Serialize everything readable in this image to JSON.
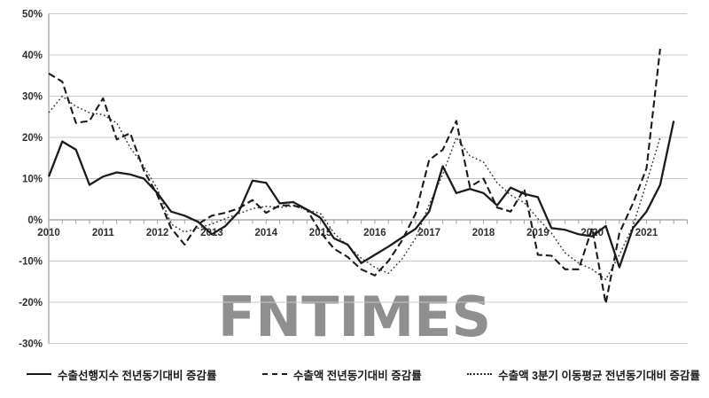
{
  "watermark": {
    "text": "FNTIMES",
    "color": "#8f8f8f"
  },
  "colors": {
    "background": "#ffffff",
    "line": "#1b1b1b",
    "dotted_line": "#2e2e2e",
    "grid": "#c8c8c8",
    "axis": "#9e9e9e",
    "tick_label": "#2f2f2f",
    "watermark": "#8f8f8f"
  },
  "legend": {
    "items": [
      {
        "label": "수출선행지수 전년동기대비 증감률",
        "line_style": "solid"
      },
      {
        "label": "수출액 전년동기대비 증감률",
        "line_style": "dashed"
      },
      {
        "label": "수출액 3분기 이동평균 전년동기대비 증감률",
        "line_style": "dotted"
      }
    ]
  },
  "chart_data": {
    "type": "line",
    "title": "",
    "xlabel": "",
    "ylabel": "",
    "grid": true,
    "legend_position": "bottom",
    "ylim": [
      -30,
      50
    ],
    "y_ticks": [
      {
        "value": 50,
        "label": "50%"
      },
      {
        "value": 40,
        "label": "40%"
      },
      {
        "value": 30,
        "label": "30%"
      },
      {
        "value": 20,
        "label": "20%"
      },
      {
        "value": 10,
        "label": "10%"
      },
      {
        "value": 0,
        "label": "0%"
      },
      {
        "value": -10,
        "label": "-10%"
      },
      {
        "value": -20,
        "label": "-20%"
      },
      {
        "value": -30,
        "label": "-30%"
      }
    ],
    "x_tick_labels": [
      "2010",
      "2011",
      "2012",
      "2013",
      "2014",
      "2015",
      "2016",
      "2017",
      "2018",
      "2019",
      "2020",
      "2021"
    ],
    "x_categories": [
      "2010Q1",
      "2010Q2",
      "2010Q3",
      "2010Q4",
      "2011Q1",
      "2011Q2",
      "2011Q3",
      "2011Q4",
      "2012Q1",
      "2012Q2",
      "2012Q3",
      "2012Q4",
      "2013Q1",
      "2013Q2",
      "2013Q3",
      "2013Q4",
      "2014Q1",
      "2014Q2",
      "2014Q3",
      "2014Q4",
      "2015Q1",
      "2015Q2",
      "2015Q3",
      "2015Q4",
      "2016Q1",
      "2016Q2",
      "2016Q3",
      "2016Q4",
      "2017Q1",
      "2017Q2",
      "2017Q3",
      "2017Q4",
      "2018Q1",
      "2018Q2",
      "2018Q3",
      "2018Q4",
      "2019Q1",
      "2019Q2",
      "2019Q3",
      "2019Q4",
      "2020Q1",
      "2020Q2",
      "2020Q3",
      "2020Q4",
      "2021Q1",
      "2021Q2",
      "2021Q3"
    ],
    "unit": "percent",
    "series": [
      {
        "name": "수출선행지수 전년동기대비 증감률",
        "style": "solid",
        "color": "#1b1b1b",
        "values": [
          10.5,
          19,
          17,
          8.5,
          10.5,
          11.5,
          11,
          10,
          6.5,
          2,
          1,
          -0.5,
          -3.5,
          -1.5,
          2,
          9.5,
          9,
          4,
          4.3,
          2.5,
          0.5,
          -4.5,
          -6,
          -10.5,
          -8.5,
          -6.5,
          -4.3,
          -2.2,
          2,
          13,
          6.5,
          7.5,
          6.5,
          3.5,
          7.8,
          6.3,
          5.5,
          -2,
          -2.4,
          -3.5,
          -4,
          -1.5,
          -11.5,
          -2,
          2,
          8.5,
          24
        ]
      },
      {
        "name": "수출액 전년동기대비 증감률",
        "style": "dashed",
        "color": "#1b1b1b",
        "values": [
          35.5,
          33.5,
          23.5,
          24,
          29.5,
          19.5,
          21,
          12,
          6,
          -2,
          -6,
          -1,
          1,
          1.7,
          2.8,
          4.8,
          1.7,
          3.5,
          3.5,
          2.5,
          -3,
          -7,
          -9,
          -12,
          -13.5,
          -10,
          -5,
          1.5,
          14.5,
          17,
          24,
          8,
          10,
          3,
          2,
          7.5,
          -8.5,
          -8.7,
          -12,
          -12,
          -2,
          -20.3,
          -3.2,
          4,
          12.5,
          41.5
        ]
      },
      {
        "name": "수출액 3분기 이동평균 전년동기대비 증감률",
        "style": "dotted",
        "color": "#2e2e2e",
        "values": [
          26,
          30,
          27.5,
          26,
          25.5,
          23.5,
          17.5,
          13,
          7.5,
          -1,
          -3,
          -2,
          -1,
          0.3,
          1.5,
          2.7,
          3.3,
          3,
          3.4,
          2.5,
          1.5,
          -3.2,
          -6.3,
          -9.3,
          -11.5,
          -13,
          -9.5,
          -4.5,
          3.7,
          11,
          20,
          15.5,
          14,
          9,
          6,
          4.2,
          0.3,
          -3.2,
          -8,
          -10.5,
          -12,
          -14.5,
          -8.5,
          -1.5,
          9,
          20
        ]
      }
    ]
  }
}
